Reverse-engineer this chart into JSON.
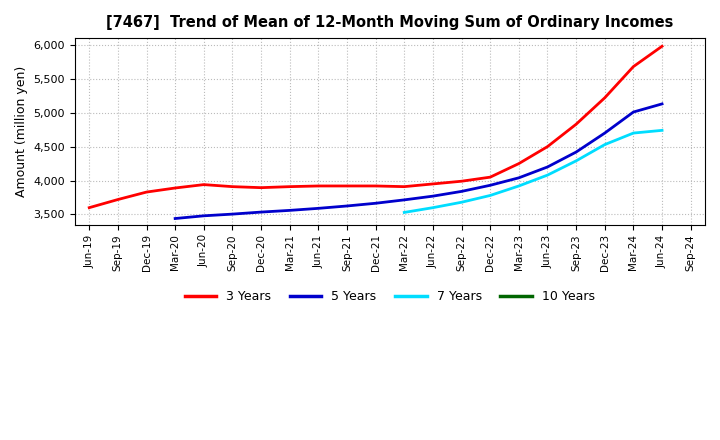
{
  "title": "[7467]  Trend of Mean of 12-Month Moving Sum of Ordinary Incomes",
  "ylabel": "Amount (million yen)",
  "ylim": [
    3350,
    6100
  ],
  "yticks": [
    3500,
    4000,
    4500,
    5000,
    5500,
    6000
  ],
  "background_color": "#ffffff",
  "grid_color": "#bbbbbb",
  "x_labels": [
    "Jun-19",
    "Sep-19",
    "Dec-19",
    "Mar-20",
    "Jun-20",
    "Sep-20",
    "Dec-20",
    "Mar-21",
    "Jun-21",
    "Sep-21",
    "Dec-21",
    "Mar-22",
    "Jun-22",
    "Sep-22",
    "Dec-22",
    "Mar-23",
    "Jun-23",
    "Sep-23",
    "Dec-23",
    "Mar-24",
    "Jun-24",
    "Sep-24"
  ],
  "series": {
    "3 Years": {
      "color": "#ff0000",
      "data_x": [
        0,
        1,
        2,
        3,
        4,
        5,
        6,
        7,
        8,
        9,
        10,
        11,
        12,
        13,
        14,
        15,
        16,
        17,
        18,
        19,
        20
      ],
      "data_y": [
        3600,
        3720,
        3830,
        3890,
        3940,
        3910,
        3895,
        3910,
        3920,
        3920,
        3920,
        3910,
        3950,
        3990,
        4050,
        4250,
        4500,
        4830,
        5220,
        5680,
        5980
      ]
    },
    "5 Years": {
      "color": "#0000cc",
      "data_x": [
        3,
        4,
        5,
        6,
        7,
        8,
        9,
        10,
        11,
        12,
        13,
        14,
        15,
        16,
        17,
        18,
        19,
        20
      ],
      "data_y": [
        3440,
        3480,
        3505,
        3535,
        3560,
        3590,
        3625,
        3665,
        3715,
        3770,
        3840,
        3930,
        4040,
        4200,
        4420,
        4700,
        5010,
        5130
      ]
    },
    "7 Years": {
      "color": "#00ddff",
      "data_x": [
        11,
        12,
        13,
        14,
        15,
        16,
        17,
        18,
        19,
        20
      ],
      "data_y": [
        3530,
        3600,
        3680,
        3780,
        3920,
        4080,
        4290,
        4530,
        4700,
        4740
      ]
    },
    "10 Years": {
      "color": "#006600",
      "data_x": [],
      "data_y": []
    }
  },
  "legend_labels": [
    "3 Years",
    "5 Years",
    "7 Years",
    "10 Years"
  ],
  "legend_colors": [
    "#ff0000",
    "#0000cc",
    "#00ddff",
    "#006600"
  ]
}
